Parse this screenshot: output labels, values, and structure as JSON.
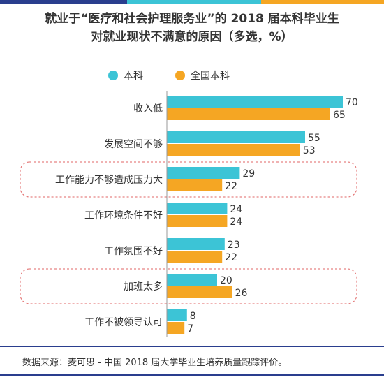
{
  "title_lines": [
    "就业于“医疗和社会护理服务业”的 2018 届本科毕业生",
    "对就业现状不满意的原因（多选，%）"
  ],
  "source": "数据来源：麦可思 - 中国 2018 届大学毕业生培养质量跟踪评价。",
  "colors": {
    "series1": "#3cc4d6",
    "series2": "#f5a623",
    "topbar": [
      "#2a3e8e",
      "#3cc4d6",
      "#f5a623"
    ],
    "highlight_border": "#e06666",
    "footer": "#2a3e8e"
  },
  "chart_data": {
    "type": "bar",
    "orientation": "horizontal",
    "categories": [
      "收入低",
      "发展空间不够",
      "工作能力不够造成压力大",
      "工作环境条件不好",
      "工作氛围不好",
      "加班太多",
      "工作不被领导认可"
    ],
    "series": [
      {
        "name": "本科",
        "values": [
          70,
          55,
          29,
          24,
          23,
          20,
          8
        ]
      },
      {
        "name": "全国本科",
        "values": [
          65,
          53,
          22,
          24,
          22,
          26,
          7
        ]
      }
    ],
    "highlighted_categories": [
      "工作能力不够造成压力大",
      "加班太多"
    ],
    "data_labels": true,
    "xlim": [
      0,
      70
    ],
    "grid": false,
    "legend": "top"
  }
}
